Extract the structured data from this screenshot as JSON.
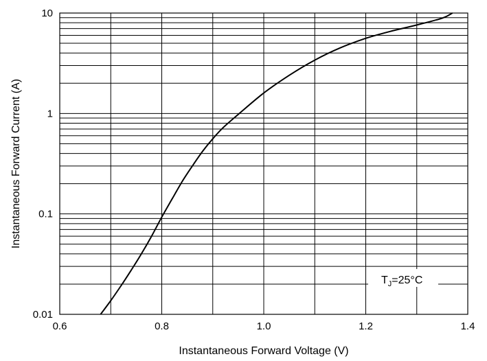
{
  "chart_data": {
    "type": "line",
    "title": "",
    "xlabel": "Instantaneous Forward Voltage (V)",
    "ylabel": "Instantaneous Forward Current (A)",
    "xlim": [
      0.6,
      1.4
    ],
    "ylim": [
      0.01,
      10
    ],
    "yscale": "log",
    "grid": true,
    "x_ticks": [
      0.6,
      0.8,
      1.0,
      1.2,
      1.4
    ],
    "x_tick_labels": [
      "0.6",
      "0.8",
      "1.0",
      "1.2",
      "1.4"
    ],
    "y_ticks": [
      0.01,
      0.1,
      1,
      10
    ],
    "y_tick_labels": [
      "0.01",
      "0.1",
      "1",
      "10"
    ],
    "annotation": {
      "base": "T",
      "subscript": "J",
      "rest": "=25°C"
    },
    "series": [
      {
        "x": [
          0.68,
          0.7,
          0.72,
          0.74,
          0.76,
          0.78,
          0.8,
          0.82,
          0.84,
          0.86,
          0.88,
          0.9,
          0.92,
          0.95,
          1.0,
          1.05,
          1.1,
          1.15,
          1.2,
          1.25,
          1.3,
          1.35,
          1.37
        ],
        "y": [
          0.01,
          0.0137,
          0.0192,
          0.0275,
          0.04,
          0.06,
          0.093,
          0.14,
          0.21,
          0.3,
          0.42,
          0.56,
          0.72,
          0.98,
          1.6,
          2.4,
          3.4,
          4.5,
          5.6,
          6.6,
          7.6,
          8.9,
          10.0
        ]
      }
    ]
  }
}
